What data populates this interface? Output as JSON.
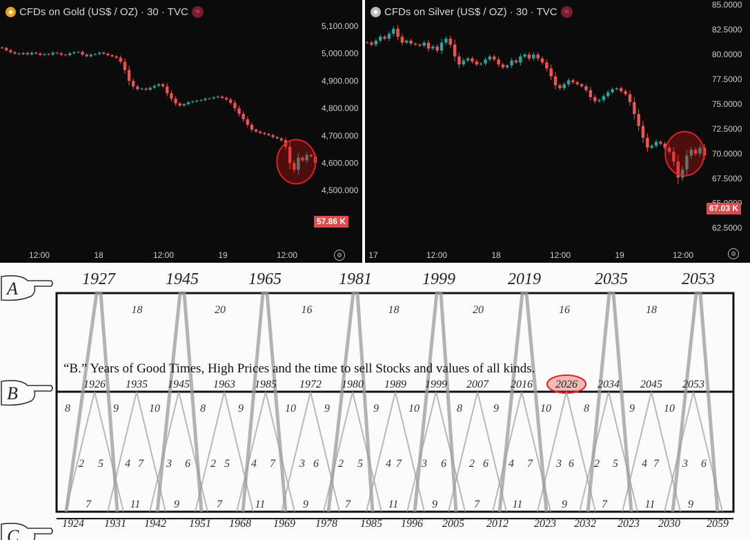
{
  "gold": {
    "title": "CFDs on Gold (US$ / OZ) · 30 · TVC",
    "coin_color": "#e8a317",
    "price_badge": "57.86 K",
    "y_ticks": [
      "5,100.000",
      "5,000.000",
      "4,900.000",
      "4,800.000",
      "4,700.000",
      "4,600.000",
      "4,500.000"
    ],
    "x_ticks": [
      "12:00",
      "18",
      "12:00",
      "19",
      "12:00"
    ],
    "settings_icon": "gear-icon",
    "chart_data": {
      "type": "candlestick",
      "ylim": [
        4440,
        5120
      ],
      "close_path": [
        5020,
        5012,
        5005,
        5000,
        4998,
        5002,
        4997,
        5003,
        5000,
        4995,
        4998,
        4996,
        5003,
        5001,
        4996,
        4994,
        5001,
        5005,
        5006,
        4996,
        4990,
        4996,
        4998,
        5003,
        4999,
        4994,
        4990,
        4985,
        4970,
        4940,
        4900,
        4880,
        4870,
        4872,
        4868,
        4875,
        4882,
        4888,
        4880,
        4855,
        4835,
        4818,
        4810,
        4815,
        4822,
        4825,
        4828,
        4830,
        4835,
        4836,
        4840,
        4843,
        4838,
        4832,
        4820,
        4800,
        4780,
        4760,
        4740,
        4722,
        4715,
        4710,
        4706,
        4702,
        4695,
        4690,
        4683,
        4660,
        4600,
        4575,
        4620,
        4610,
        4630,
        4625,
        4600
      ],
      "highlight": {
        "center_value": 4605,
        "color": "#e02020"
      }
    }
  },
  "silver": {
    "title": "CFDs on Silver (US$ / OZ) · 30 · TVC",
    "coin_color": "#bdbdbd",
    "price_badge": "67.03 K",
    "y_ticks": [
      "85.0000",
      "82.5000",
      "80.0000",
      "77.5000",
      "75.0000",
      "72.5000",
      "70.0000",
      "67.5000",
      "65.0000",
      "62.5000"
    ],
    "x_ticks": [
      "17",
      "12:00",
      "18",
      "12:00",
      "19",
      "12:00"
    ],
    "settings_icon": "gear-icon",
    "chart_data": {
      "type": "candlestick",
      "ylim": [
        61.5,
        85.5
      ],
      "close_path": [
        81.2,
        81.0,
        81.4,
        81.8,
        81.6,
        82.1,
        82.6,
        81.8,
        81.2,
        81.4,
        81.1,
        81.0,
        80.9,
        81.2,
        80.6,
        80.8,
        80.4,
        81.2,
        81.6,
        81.0,
        79.8,
        79.0,
        79.4,
        79.6,
        79.3,
        79.0,
        79.1,
        79.5,
        79.8,
        79.5,
        79.0,
        78.7,
        78.9,
        79.4,
        79.2,
        79.8,
        80.0,
        79.6,
        80.0,
        79.6,
        79.2,
        78.6,
        77.8,
        76.9,
        76.6,
        77.0,
        77.4,
        77.2,
        77.0,
        76.8,
        76.4,
        75.7,
        75.3,
        75.4,
        75.8,
        76.2,
        76.5,
        76.6,
        76.3,
        76.0,
        75.2,
        74.0,
        72.8,
        71.6,
        70.6,
        70.8,
        71.2,
        71.0,
        70.6,
        70.2,
        69.2,
        67.6,
        68.4,
        69.8,
        70.4,
        70.0,
        70.6,
        69.8
      ]
    }
  },
  "cycle": {
    "a_label": "A",
    "b_label": "B",
    "c_label": "C",
    "a_years": [
      "1927",
      "1945",
      "1965",
      "1981",
      "1999",
      "2019",
      "2035",
      "2053"
    ],
    "a_spans": [
      "18",
      "20",
      "16",
      "18",
      "20",
      "16",
      "18"
    ],
    "b_heading": "“B.” Years of Good Times, High Prices and the time to sell Stocks and values of all kinds.",
    "b_years": [
      "1926",
      "1935",
      "1945",
      "1963",
      "1985",
      "1972",
      "1980",
      "1989",
      "1999",
      "2007",
      "2016",
      "2026",
      "2034",
      "2045",
      "2053"
    ],
    "b_highlight": "2026",
    "b_spans": [
      "8",
      "9",
      "10",
      "8",
      "9",
      "10",
      "9",
      "9",
      "10",
      "8",
      "9",
      "10",
      "8",
      "9",
      "10"
    ],
    "mid_numbers": [
      "2",
      "5",
      "4",
      "7",
      "3",
      "6",
      "2",
      "5",
      "4",
      "7",
      "3",
      "6",
      "2",
      "5",
      "4",
      "7",
      "3",
      "6",
      "2",
      "6",
      "4",
      "7",
      "3",
      "6",
      "2",
      "5",
      "4",
      "7",
      "3",
      "6"
    ],
    "low_numbers": [
      "7",
      "11",
      "9",
      "7",
      "11",
      "9",
      "7",
      "11",
      "9",
      "7",
      "11",
      "9",
      "7",
      "11",
      "9"
    ],
    "c_years": [
      "1924",
      "1931",
      "1942",
      "1951",
      "1968",
      "1969",
      "1978",
      "1985",
      "1996",
      "2005",
      "2012",
      "2023",
      "2032",
      "2023",
      "2030",
      "2059"
    ],
    "highlight_color": "#e02020"
  }
}
